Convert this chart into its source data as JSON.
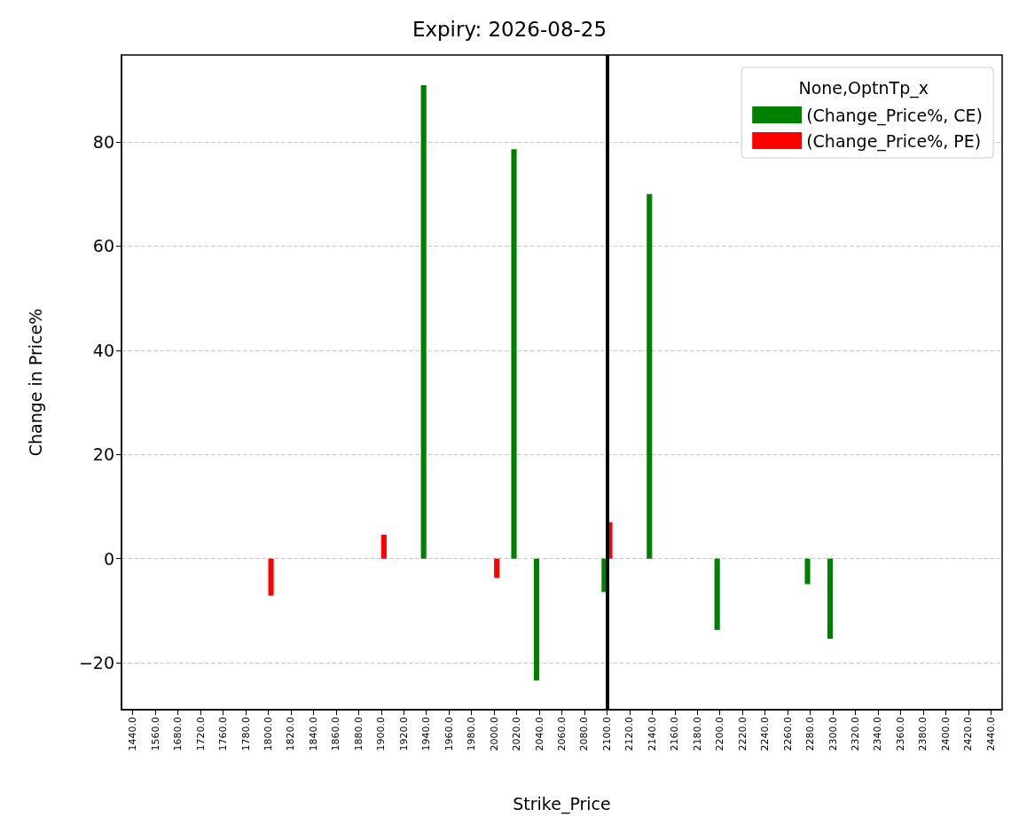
{
  "chart_data": {
    "type": "bar",
    "title": "Expiry: 2026-08-25",
    "xlabel": "Strike_Price",
    "ylabel": "Change in Price%",
    "legend_title": "None,OptnTp_x",
    "categories": [
      "1440.0",
      "1560.0",
      "1680.0",
      "1720.0",
      "1760.0",
      "1780.0",
      "1800.0",
      "1820.0",
      "1840.0",
      "1860.0",
      "1880.0",
      "1900.0",
      "1920.0",
      "1940.0",
      "1960.0",
      "1980.0",
      "2000.0",
      "2020.0",
      "2040.0",
      "2060.0",
      "2080.0",
      "2100.0",
      "2120.0",
      "2140.0",
      "2160.0",
      "2180.0",
      "2200.0",
      "2220.0",
      "2240.0",
      "2260.0",
      "2280.0",
      "2300.0",
      "2320.0",
      "2340.0",
      "2360.0",
      "2380.0",
      "2400.0",
      "2420.0",
      "2440.0"
    ],
    "series": [
      {
        "name": "(Change_Price%, CE)",
        "color": "#008000",
        "values": [
          null,
          null,
          null,
          null,
          null,
          null,
          null,
          null,
          null,
          null,
          null,
          null,
          null,
          90.9,
          null,
          null,
          null,
          78.6,
          -23.4,
          null,
          null,
          -6.4,
          null,
          70.0,
          null,
          null,
          -13.7,
          null,
          null,
          null,
          -4.9,
          -15.4,
          null,
          null,
          null,
          null,
          null,
          null,
          null
        ]
      },
      {
        "name": "(Change_Price%, PE)",
        "color": "#ff0000",
        "values": [
          null,
          null,
          null,
          null,
          null,
          null,
          -7.1,
          null,
          null,
          null,
          null,
          4.6,
          null,
          null,
          null,
          null,
          -3.7,
          null,
          null,
          null,
          null,
          7.0,
          null,
          null,
          null,
          null,
          null,
          null,
          null,
          null,
          null,
          null,
          null,
          null,
          null,
          null,
          null,
          null,
          null
        ]
      }
    ],
    "ylim": [
      -29,
      96.7
    ],
    "yticks": [
      -20,
      0,
      20,
      40,
      60,
      80
    ],
    "grid": "y",
    "legend": "top right",
    "ref_lines": [
      {
        "axis": "x",
        "value": "2100.0",
        "color": "#000000",
        "line_style": "solid"
      }
    ]
  }
}
